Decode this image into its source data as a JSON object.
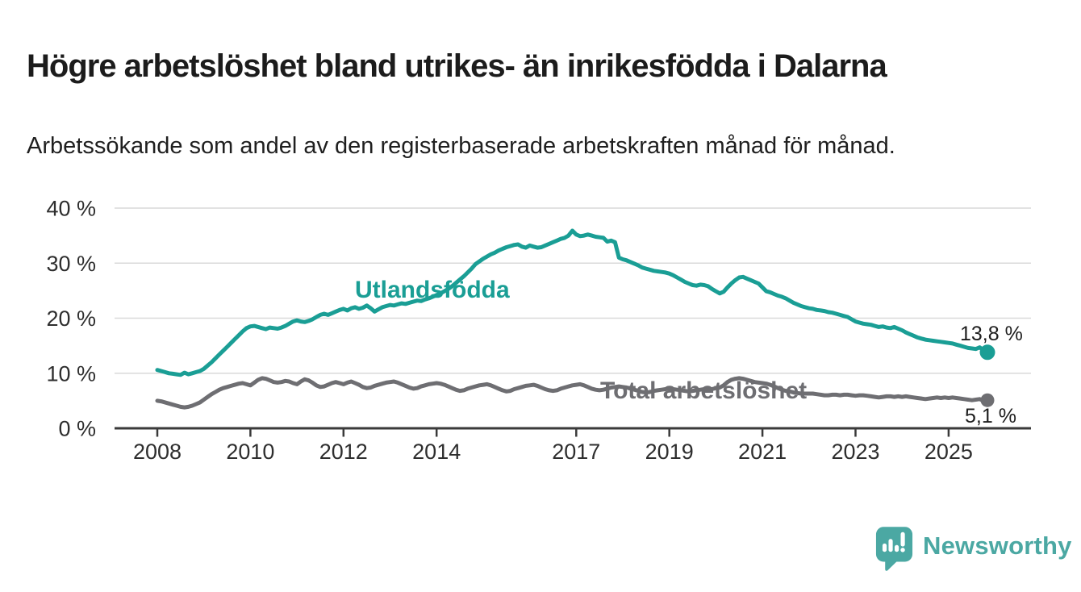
{
  "header": {
    "title": "Högre arbetslöshet bland utrikes- än inrikesfödda i Dalarna",
    "subtitle": "Arbetssökande som andel av den registerbaserade arbetskraften månad för månad."
  },
  "colors": {
    "teal_line": "#1a9e95",
    "gray_line": "#6e6e72",
    "gridline": "#d9d9d9",
    "axis": "#3a3a3a",
    "tick_text": "#2e2e2e",
    "logo_teal": "#4ba8a3",
    "annotation_text": "#1d1d1d"
  },
  "footer": {
    "logo_text": "Newsworthy"
  },
  "chart_data": {
    "type": "line",
    "unit": "%",
    "ylim": [
      0,
      40
    ],
    "grid": true,
    "y_ticks": [
      {
        "value": 40,
        "label": "40 %"
      },
      {
        "value": 30,
        "label": "30 %"
      },
      {
        "value": 20,
        "label": "20 %"
      },
      {
        "value": 10,
        "label": "10 %"
      },
      {
        "value": 0,
        "label": "0 %"
      }
    ],
    "x_ticks": [
      {
        "year": 2008,
        "label": "2008"
      },
      {
        "year": 2010,
        "label": "2010"
      },
      {
        "year": 2012,
        "label": "2012"
      },
      {
        "year": 2014,
        "label": "2014"
      },
      {
        "year": 2017,
        "label": "2017"
      },
      {
        "year": 2019,
        "label": "2019"
      },
      {
        "year": 2021,
        "label": "2021"
      },
      {
        "year": 2023,
        "label": "2023"
      },
      {
        "year": 2025,
        "label": "2025"
      }
    ],
    "series": [
      {
        "id": "utlandsfodda",
        "label": "Utlandsfödda",
        "color_key": "teal_line",
        "start_year": 2008,
        "frequency": "monthly",
        "end_label": "13,8 %",
        "values": [
          10.6,
          10.4,
          10.2,
          10.0,
          9.9,
          9.8,
          9.7,
          10.1,
          9.8,
          10.0,
          10.2,
          10.4,
          10.8,
          11.4,
          12.0,
          12.7,
          13.4,
          14.1,
          14.8,
          15.5,
          16.2,
          16.9,
          17.6,
          18.2,
          18.5,
          18.6,
          18.4,
          18.2,
          18.0,
          18.3,
          18.2,
          18.1,
          18.3,
          18.6,
          19.0,
          19.4,
          19.6,
          19.4,
          19.3,
          19.5,
          19.8,
          20.2,
          20.6,
          20.8,
          20.6,
          20.9,
          21.2,
          21.5,
          21.7,
          21.4,
          21.8,
          22.0,
          21.7,
          21.9,
          22.3,
          21.8,
          21.2,
          21.6,
          22.0,
          22.2,
          22.4,
          22.3,
          22.5,
          22.7,
          22.6,
          22.8,
          23.0,
          23.2,
          23.1,
          23.4,
          23.6,
          23.9,
          24.2,
          24.5,
          24.9,
          25.3,
          25.8,
          26.4,
          27.0,
          27.6,
          28.3,
          29.0,
          29.8,
          30.3,
          30.8,
          31.2,
          31.6,
          31.9,
          32.3,
          32.6,
          32.9,
          33.1,
          33.3,
          33.4,
          33.0,
          32.8,
          33.2,
          33.0,
          32.8,
          32.9,
          33.2,
          33.5,
          33.8,
          34.1,
          34.4,
          34.6,
          35.0,
          35.9,
          35.2,
          34.9,
          35.0,
          35.2,
          35.0,
          34.8,
          34.7,
          34.6,
          33.9,
          34.1,
          33.8,
          31.0,
          30.7,
          30.5,
          30.2,
          29.9,
          29.6,
          29.2,
          29.0,
          28.8,
          28.6,
          28.5,
          28.4,
          28.3,
          28.1,
          27.8,
          27.4,
          27.0,
          26.6,
          26.3,
          26.0,
          25.9,
          26.1,
          26.0,
          25.8,
          25.3,
          24.9,
          24.5,
          24.8,
          25.6,
          26.3,
          26.9,
          27.4,
          27.5,
          27.2,
          26.9,
          26.6,
          26.3,
          25.6,
          24.9,
          24.7,
          24.4,
          24.1,
          23.9,
          23.6,
          23.2,
          22.8,
          22.5,
          22.2,
          22.0,
          21.8,
          21.7,
          21.5,
          21.4,
          21.3,
          21.1,
          21.0,
          20.8,
          20.6,
          20.4,
          20.2,
          19.8,
          19.4,
          19.2,
          19.0,
          18.9,
          18.8,
          18.6,
          18.4,
          18.5,
          18.3,
          18.2,
          18.4,
          18.1,
          17.8,
          17.4,
          17.1,
          16.8,
          16.5,
          16.3,
          16.1,
          16.0,
          15.9,
          15.8,
          15.7,
          15.6,
          15.5,
          15.4,
          15.2,
          15.0,
          14.8,
          14.6,
          14.5,
          14.4,
          14.7,
          14.2,
          13.8
        ]
      },
      {
        "id": "total",
        "label": "Total arbetslöshet",
        "color_key": "gray_line",
        "start_year": 2008,
        "frequency": "monthly",
        "end_label": "5,1 %",
        "values": [
          5.0,
          4.9,
          4.7,
          4.5,
          4.3,
          4.1,
          3.9,
          3.8,
          3.9,
          4.1,
          4.4,
          4.7,
          5.2,
          5.7,
          6.2,
          6.6,
          7.0,
          7.3,
          7.5,
          7.7,
          7.9,
          8.1,
          8.2,
          8.0,
          7.8,
          8.3,
          8.8,
          9.1,
          9.0,
          8.7,
          8.4,
          8.3,
          8.4,
          8.6,
          8.5,
          8.2,
          8.0,
          8.5,
          8.9,
          8.7,
          8.3,
          7.8,
          7.5,
          7.6,
          7.9,
          8.2,
          8.4,
          8.2,
          8.0,
          8.3,
          8.5,
          8.2,
          7.9,
          7.5,
          7.3,
          7.4,
          7.7,
          7.9,
          8.1,
          8.3,
          8.4,
          8.5,
          8.3,
          8.0,
          7.7,
          7.4,
          7.2,
          7.3,
          7.6,
          7.8,
          8.0,
          8.1,
          8.2,
          8.1,
          7.9,
          7.6,
          7.3,
          7.0,
          6.8,
          6.9,
          7.2,
          7.4,
          7.6,
          7.8,
          7.9,
          8.0,
          7.8,
          7.5,
          7.2,
          6.9,
          6.7,
          6.8,
          7.1,
          7.3,
          7.5,
          7.7,
          7.8,
          7.9,
          7.7,
          7.4,
          7.1,
          6.9,
          6.8,
          6.9,
          7.2,
          7.4,
          7.6,
          7.8,
          7.9,
          8.0,
          7.8,
          7.5,
          7.2,
          7.0,
          6.9,
          7.0,
          7.2,
          7.4,
          7.5,
          7.6,
          7.5,
          7.4,
          7.2,
          7.0,
          6.8,
          6.6,
          6.5,
          6.6,
          6.8,
          6.9,
          7.0,
          7.1,
          7.2,
          7.1,
          7.0,
          6.9,
          6.8,
          6.7,
          6.8,
          6.9,
          7.0,
          7.1,
          7.0,
          7.1,
          7.3,
          7.4,
          7.8,
          8.4,
          8.8,
          9.0,
          9.1,
          9.0,
          8.8,
          8.6,
          8.4,
          8.3,
          8.2,
          8.1,
          7.9,
          7.6,
          7.3,
          7.0,
          6.8,
          6.7,
          6.5,
          6.4,
          6.3,
          6.3,
          6.3,
          6.3,
          6.2,
          6.1,
          6.0,
          6.0,
          6.1,
          6.1,
          6.0,
          6.1,
          6.1,
          6.0,
          5.9,
          6.0,
          6.0,
          5.9,
          5.8,
          5.7,
          5.6,
          5.7,
          5.8,
          5.8,
          5.7,
          5.8,
          5.7,
          5.8,
          5.7,
          5.6,
          5.5,
          5.4,
          5.3,
          5.4,
          5.5,
          5.6,
          5.5,
          5.6,
          5.5,
          5.6,
          5.5,
          5.4,
          5.3,
          5.2,
          5.1,
          5.2,
          5.3,
          5.0,
          5.1
        ]
      }
    ]
  }
}
